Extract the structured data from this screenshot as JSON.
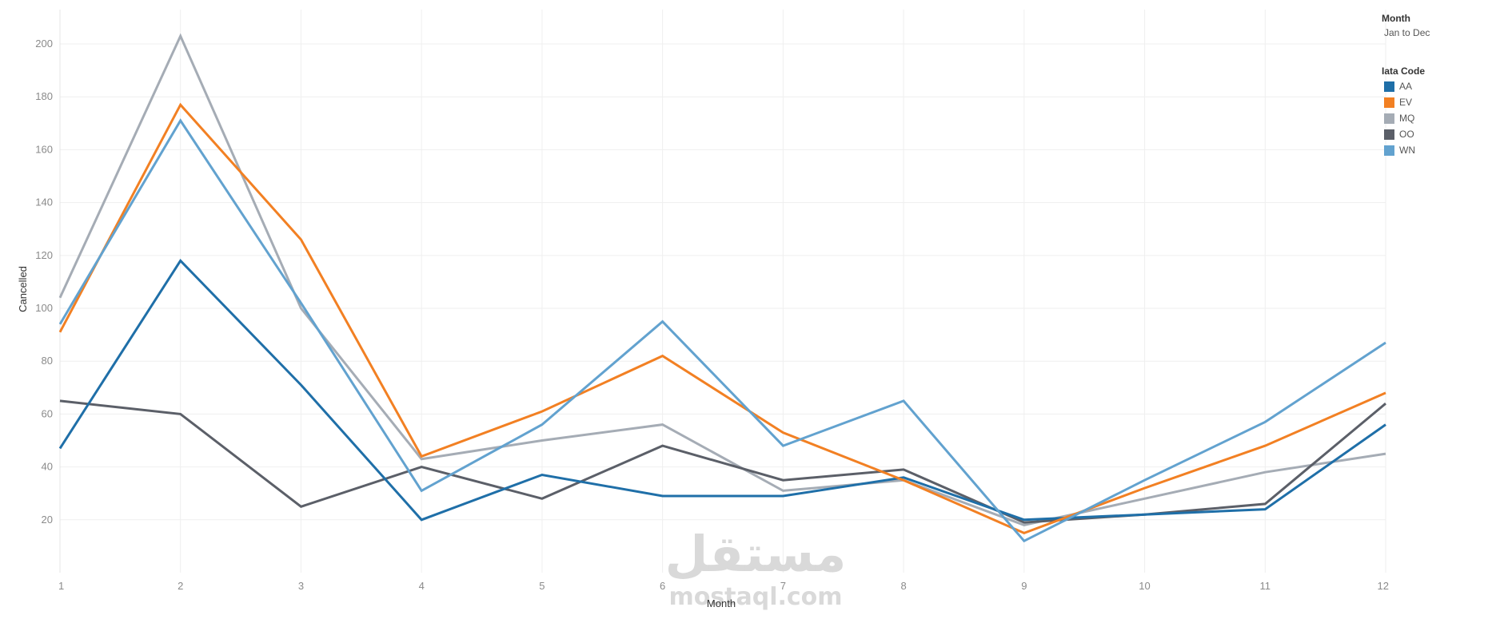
{
  "filter": {
    "title": "Month",
    "value": "Jan to Dec"
  },
  "legend": {
    "title": "Iata Code"
  },
  "watermark": {
    "arabic": "مستقل",
    "latin": "mostaql.com"
  },
  "chart_data": {
    "type": "line",
    "title": "",
    "xlabel": "Month",
    "ylabel": "Cancelled",
    "x": [
      1,
      2,
      3,
      4,
      5,
      6,
      7,
      8,
      9,
      10,
      11,
      12
    ],
    "xlim": [
      1,
      12
    ],
    "ylim": [
      0,
      213
    ],
    "yticks": [
      20,
      40,
      60,
      80,
      100,
      120,
      140,
      160,
      180,
      200
    ],
    "grid": true,
    "legend_position": "top-right",
    "series": [
      {
        "name": "MQ",
        "color": "#a5acb5",
        "values": [
          104,
          203,
          100,
          43,
          50,
          56,
          31,
          35,
          18,
          28,
          38,
          45
        ]
      },
      {
        "name": "OO",
        "color": "#5b5f68",
        "values": [
          65,
          60,
          25,
          40,
          28,
          48,
          35,
          39,
          19,
          22,
          26,
          64
        ]
      },
      {
        "name": "AA",
        "color": "#1f6fa8",
        "values": [
          47,
          118,
          71,
          20,
          37,
          29,
          29,
          36,
          20,
          22,
          24,
          56
        ]
      },
      {
        "name": "EV",
        "color": "#f28023",
        "values": [
          91,
          177,
          126,
          44,
          61,
          82,
          53,
          35,
          15,
          32,
          48,
          68
        ]
      },
      {
        "name": "WN",
        "color": "#62a2cf",
        "values": [
          94,
          171,
          102,
          31,
          56,
          95,
          48,
          65,
          12,
          35,
          57,
          87
        ]
      }
    ],
    "legend_order": [
      "AA",
      "EV",
      "MQ",
      "OO",
      "WN"
    ]
  }
}
